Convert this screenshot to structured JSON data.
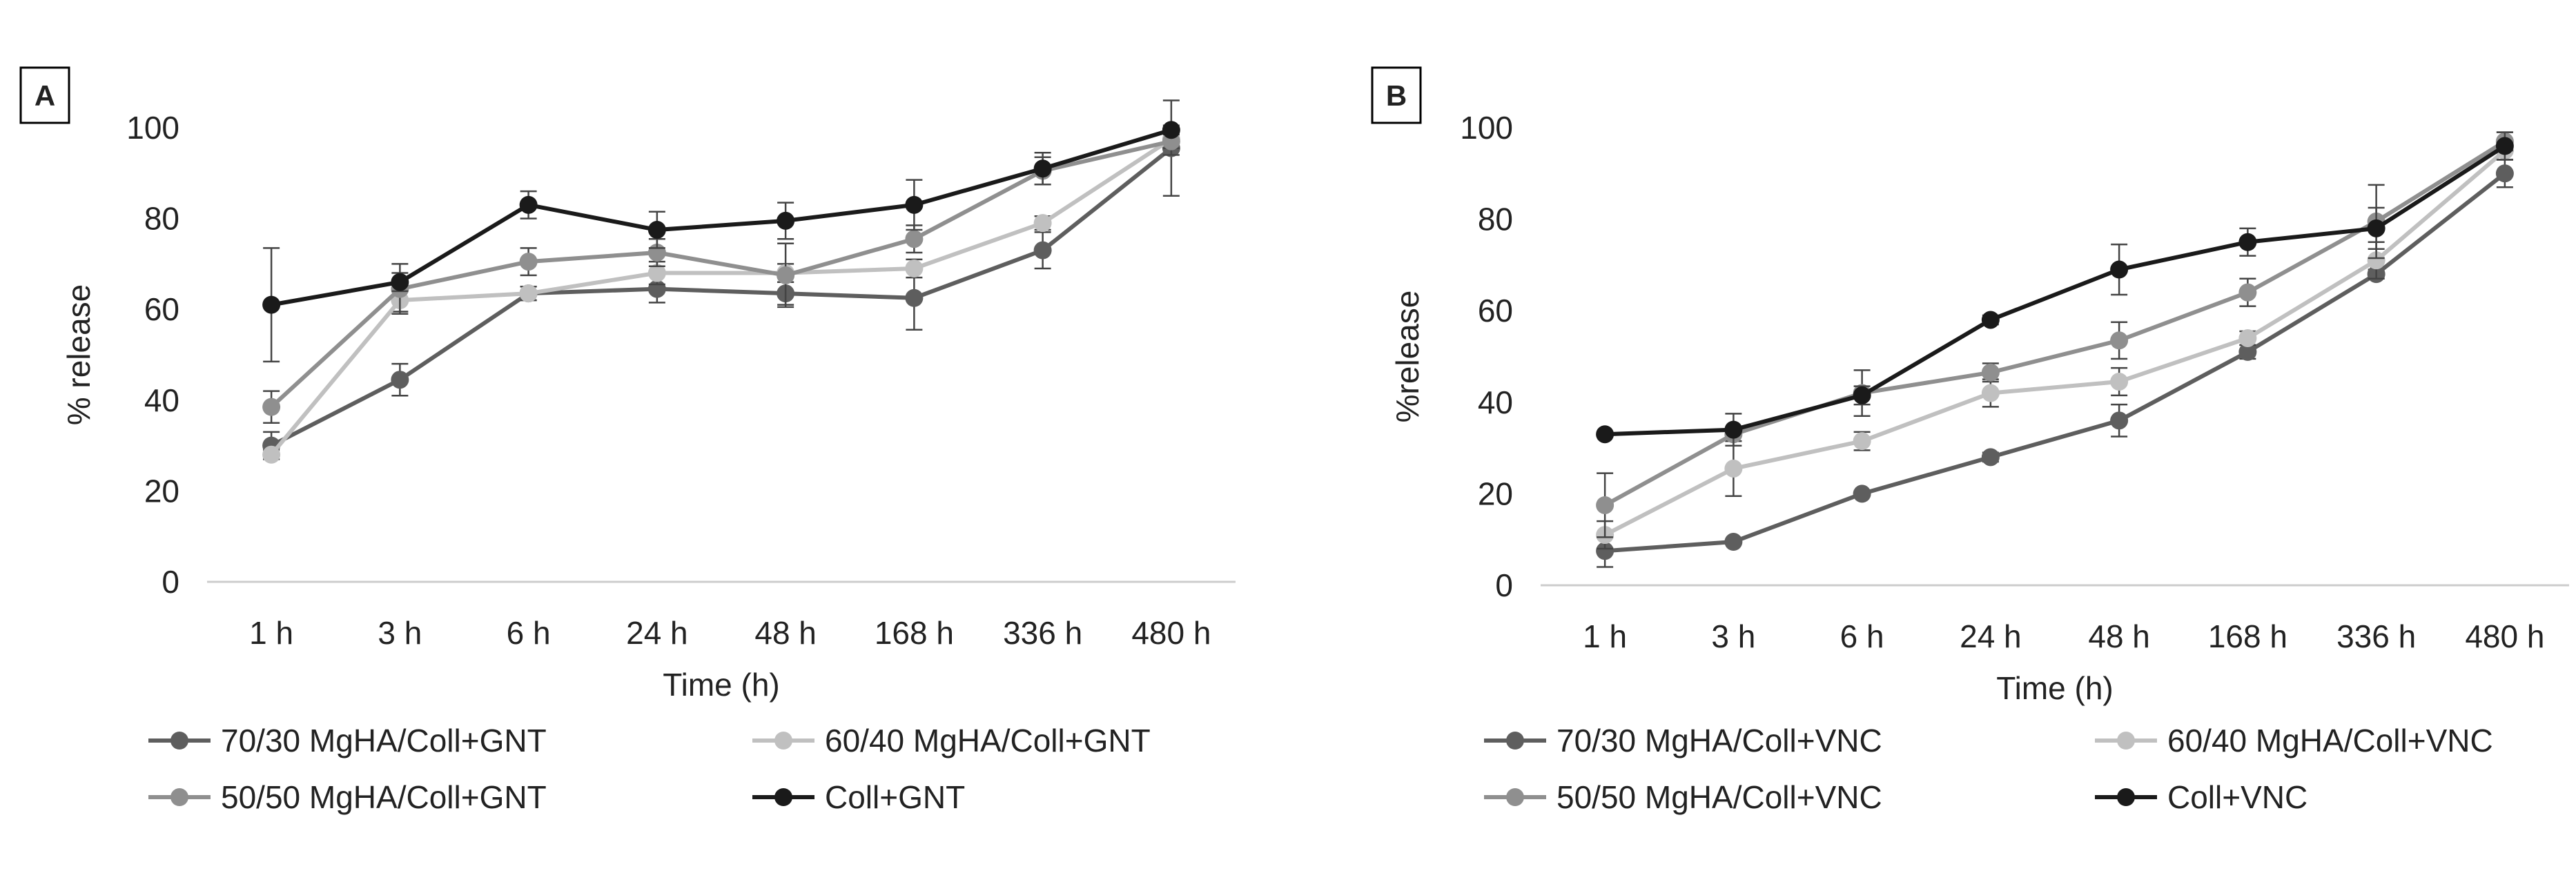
{
  "colors": {
    "series1": "#5e5e5e",
    "series2": "#c0c0c0",
    "series3": "#8f8f8f",
    "series4": "#1a1a1a",
    "axis": "#cccccc",
    "errorbar": "#444444"
  },
  "chart_data": [
    {
      "panel_label": "A",
      "type": "line",
      "title": "",
      "xlabel": "Time (h)",
      "ylabel": "% release",
      "categories": [
        "1 h",
        "3 h",
        "6 h",
        "24 h",
        "48 h",
        "168 h",
        "336 h",
        "480 h"
      ],
      "ylim": [
        0,
        100
      ],
      "yticks": [
        "0",
        "20",
        "40",
        "60",
        "80",
        "100"
      ],
      "ytick_values": [
        0,
        20,
        40,
        60,
        80,
        100
      ],
      "grid": false,
      "legend_position": "bottom",
      "series": [
        {
          "name": "70/30 MgHA/Coll+GNT",
          "values": [
            30,
            44.5,
            63.5,
            64.5,
            63.5,
            62.5,
            73,
            95.5
          ],
          "errors": [
            3,
            3.5,
            1.5,
            3,
            2.5,
            7,
            4,
            10.5
          ]
        },
        {
          "name": "60/40 MgHA/Coll+GNT",
          "values": [
            28,
            62,
            63.5,
            68,
            68,
            69,
            79,
            97.5
          ],
          "errors": [
            1,
            2.5,
            1.5,
            2.5,
            2,
            2,
            1.5,
            2
          ]
        },
        {
          "name": "50/50 MgHA/Coll+GNT",
          "values": [
            38.5,
            64.5,
            70.5,
            72.5,
            67.5,
            75.5,
            90.5,
            97
          ],
          "errors": [
            3.5,
            5.5,
            3,
            3,
            7,
            3,
            3,
            3
          ]
        },
        {
          "name": "Coll+GNT",
          "values": [
            61,
            66,
            83,
            77.5,
            79.5,
            83,
            91,
            99.5
          ],
          "errors": [
            12.5,
            2,
            3,
            4,
            4,
            5.5,
            3.5,
            1
          ]
        }
      ]
    },
    {
      "panel_label": "B",
      "type": "line",
      "title": "",
      "xlabel": "Time (h)",
      "ylabel": "%release",
      "categories": [
        "1 h",
        "3 h",
        "6 h",
        "24 h",
        "48 h",
        "168 h",
        "336 h",
        "480 h"
      ],
      "ylim": [
        0,
        100
      ],
      "yticks": [
        "0",
        "20",
        "40",
        "60",
        "80",
        "100"
      ],
      "ytick_values": [
        0,
        20,
        40,
        60,
        80,
        100
      ],
      "grid": false,
      "legend_position": "bottom",
      "series": [
        {
          "name": "70/30 MgHA/Coll+VNC",
          "values": [
            7.5,
            9.5,
            20,
            28,
            36,
            51,
            68,
            90
          ],
          "errors": [
            3.5,
            0.5,
            0.5,
            1,
            3.5,
            1.5,
            1,
            3
          ]
        },
        {
          "name": "60/40 MgHA/Coll+VNC",
          "values": [
            11,
            25.5,
            31.5,
            42,
            44.5,
            54,
            71,
            95
          ],
          "errors": [
            3,
            6,
            2,
            3,
            3,
            1.5,
            4,
            2
          ]
        },
        {
          "name": "50/50 MgHA/Coll+VNC",
          "values": [
            17.5,
            33,
            42,
            46.5,
            53.5,
            64,
            79.5,
            97
          ],
          "errors": [
            7,
            1.5,
            5,
            2,
            4,
            3,
            8,
            2
          ]
        },
        {
          "name": "Coll+VNC",
          "values": [
            33,
            34,
            41.5,
            58,
            69,
            75,
            78,
            96
          ],
          "errors": [
            0.5,
            3.5,
            2,
            1,
            5.5,
            3,
            4.5,
            3
          ]
        }
      ]
    }
  ]
}
